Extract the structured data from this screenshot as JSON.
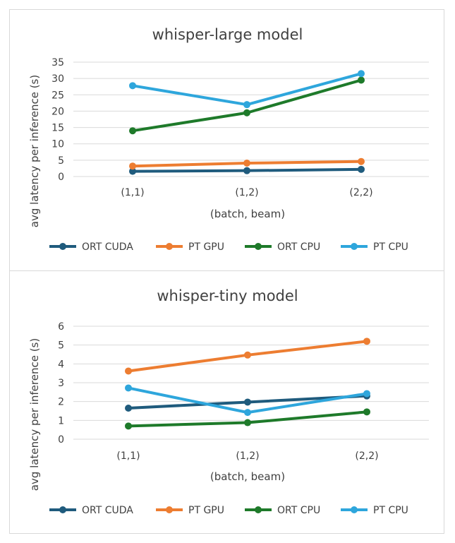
{
  "chart_data": [
    {
      "type": "line",
      "title": "whisper-large model",
      "xlabel": "(batch, beam)",
      "ylabel": "avg latency per inference (s)",
      "categories": [
        "(1,1)",
        "(1,2)",
        "(2,2)"
      ],
      "ylim": [
        0,
        35
      ],
      "yticks": [
        0,
        5,
        10,
        15,
        20,
        25,
        30,
        35
      ],
      "grid": true,
      "legend_position": "bottom",
      "series": [
        {
          "name": "ORT CUDA",
          "color": "#1f5b7d",
          "values": [
            1.6,
            1.8,
            2.2
          ]
        },
        {
          "name": "PT GPU",
          "color": "#ed7d31",
          "values": [
            3.2,
            4.1,
            4.6
          ]
        },
        {
          "name": "ORT CPU",
          "color": "#1e7a2a",
          "values": [
            14.0,
            19.5,
            29.5
          ]
        },
        {
          "name": "PT CPU",
          "color": "#2ea6dc",
          "values": [
            27.8,
            22.0,
            31.5
          ]
        }
      ]
    },
    {
      "type": "line",
      "title": "whisper-tiny model",
      "xlabel": "(batch, beam)",
      "ylabel": "avg latency per inference (s)",
      "categories": [
        "(1,1)",
        "(1,2)",
        "(2,2)"
      ],
      "ylim": [
        0,
        6
      ],
      "yticks": [
        0,
        1,
        2,
        3,
        4,
        5,
        6
      ],
      "grid": true,
      "legend_position": "bottom",
      "series": [
        {
          "name": "ORT CUDA",
          "color": "#1f5b7d",
          "values": [
            1.65,
            1.97,
            2.3
          ]
        },
        {
          "name": "PT GPU",
          "color": "#ed7d31",
          "values": [
            3.62,
            4.47,
            5.2
          ]
        },
        {
          "name": "ORT CPU",
          "color": "#1e7a2a",
          "values": [
            0.7,
            0.88,
            1.45
          ]
        },
        {
          "name": "PT CPU",
          "color": "#2ea6dc",
          "values": [
            2.72,
            1.42,
            2.42
          ]
        }
      ]
    }
  ]
}
